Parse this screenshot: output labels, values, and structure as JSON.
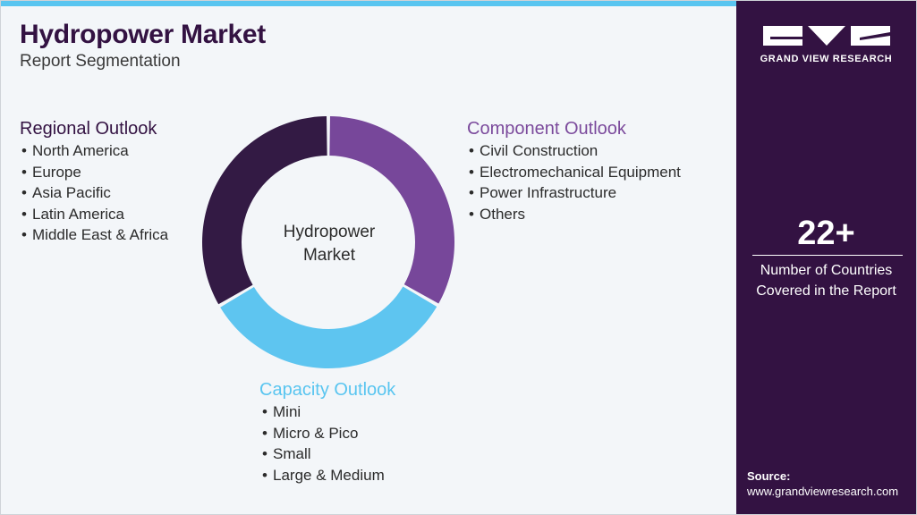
{
  "header": {
    "title": "Hydropower Market",
    "subtitle": "Report Segmentation"
  },
  "segments": {
    "regional": {
      "heading": "Regional Outlook",
      "color": "#331242",
      "items": [
        "North America",
        "Europe",
        "Asia Pacific",
        "Latin America",
        "Middle East & Africa"
      ]
    },
    "component": {
      "heading": "Component Outlook",
      "color": "#7b4a9c",
      "items": [
        "Civil Construction",
        "Electromechanical Equipment",
        "Power Infrastructure",
        "Others"
      ]
    },
    "capacity": {
      "heading": "Capacity Outlook",
      "color": "#5ec5f0",
      "items": [
        "Mini",
        "Micro & Pico",
        "Small",
        "Large & Medium"
      ]
    }
  },
  "donut": {
    "center_line1": "Hydropower",
    "center_line2": "Market",
    "segments": [
      {
        "key": "component",
        "color": "#77479a",
        "fraction": 0.333
      },
      {
        "key": "capacity",
        "color": "#5ec5f0",
        "fraction": 0.333
      },
      {
        "key": "regional",
        "color": "#331a44",
        "fraction": 0.334
      }
    ]
  },
  "brand": {
    "logo_icon": "gvr-logo-icon",
    "name": "GRAND VIEW RESEARCH"
  },
  "stat": {
    "number": "22+",
    "label_line1": "Number of Countries",
    "label_line2": "Covered in the Report"
  },
  "source": {
    "label": "Source:",
    "url": "www.grandviewresearch.com"
  }
}
